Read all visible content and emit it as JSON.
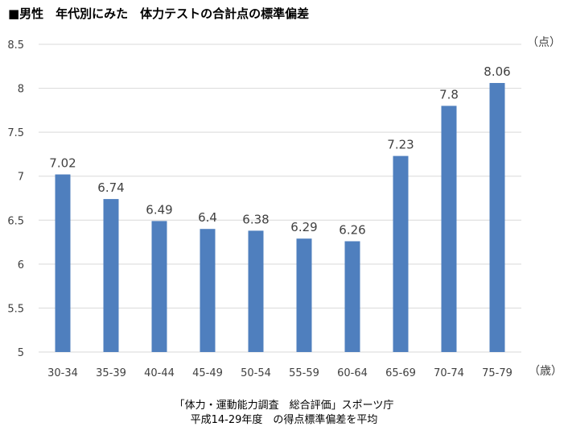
{
  "title": "■男性　年代別にみた　体力テストの合計点の標準偏差",
  "y_unit": "（点）",
  "x_unit": "（歳）",
  "source_line1": "「体力・運動能力調査　総合評価」スポーツ庁",
  "source_line2": "平成14-29年度　の得点標準偏差を平均",
  "colors": {
    "bar": "#4F7FBE",
    "grid": "#D9D9D9",
    "text": "#404040"
  },
  "chart_data": {
    "type": "bar",
    "title": "■男性　年代別にみた　体力テストの合計点の標準偏差",
    "xlabel": "（歳）",
    "ylabel": "（点）",
    "ylim": [
      5,
      8.5
    ],
    "yticks": [
      5,
      5.5,
      6,
      6.5,
      7,
      7.5,
      8,
      8.5
    ],
    "ytick_labels": [
      "5",
      "5.5",
      "6",
      "6.5",
      "7",
      "7.5",
      "8",
      "8.5"
    ],
    "grid": true,
    "legend": "none",
    "categories": [
      "30-34",
      "35-39",
      "40-44",
      "45-49",
      "50-54",
      "55-59",
      "60-64",
      "65-69",
      "70-74",
      "75-79"
    ],
    "values": [
      7.02,
      6.74,
      6.49,
      6.4,
      6.38,
      6.29,
      6.26,
      7.23,
      7.8,
      8.06
    ],
    "value_labels": [
      "7.02",
      "6.74",
      "6.49",
      "6.4",
      "6.38",
      "6.29",
      "6.26",
      "7.23",
      "7.8",
      "8.06"
    ]
  }
}
